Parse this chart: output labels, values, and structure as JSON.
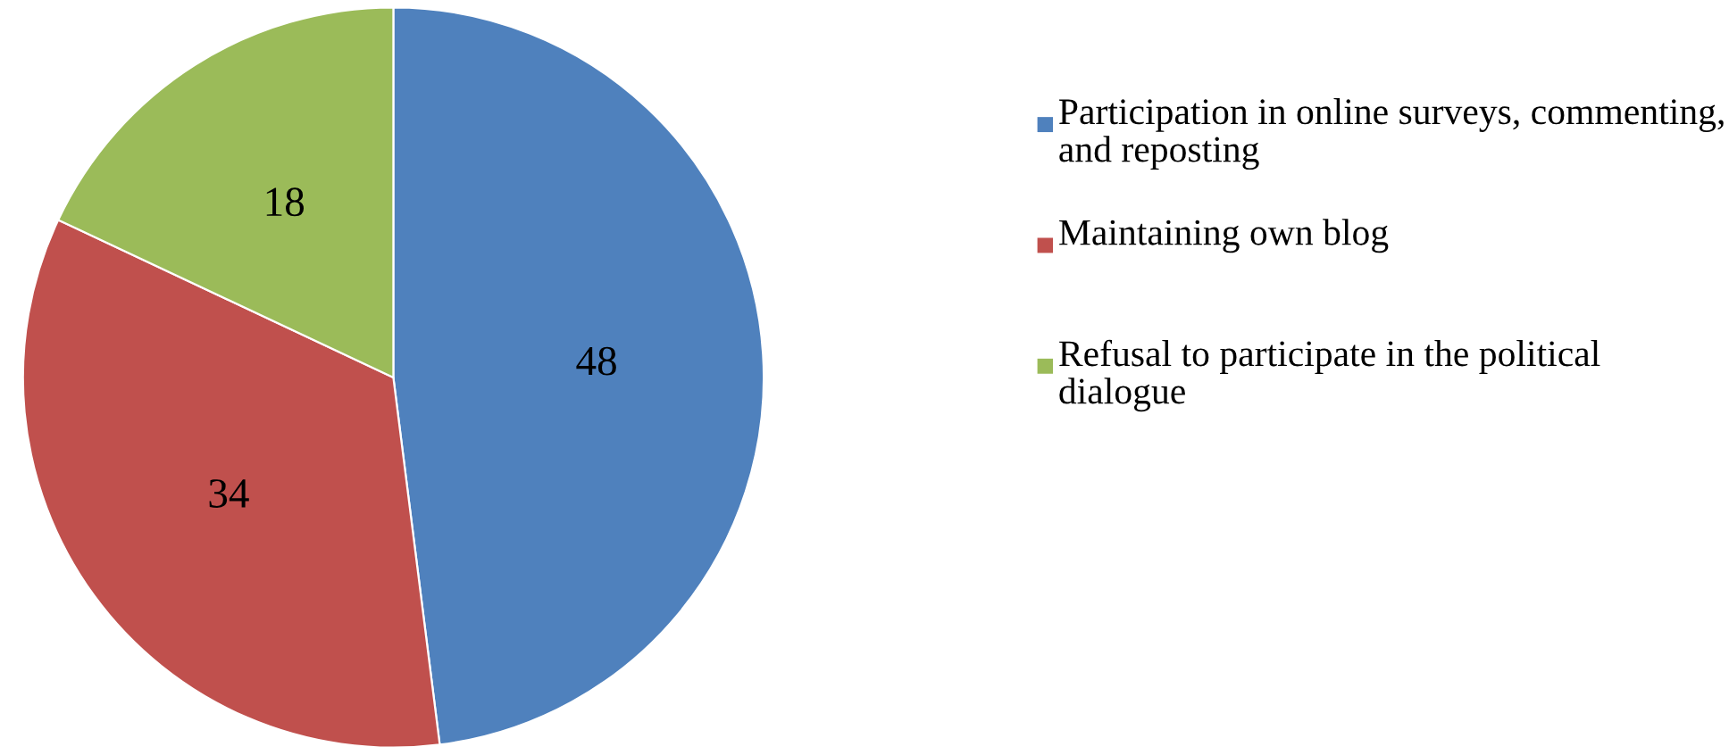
{
  "chart_data": {
    "type": "pie",
    "categories": [
      "Participation in online surveys, commenting, and reposting",
      "Maintaining own blog",
      "Refusal to participate in the political dialogue"
    ],
    "values": [
      48,
      34,
      18
    ],
    "colors": [
      "#4f81bd",
      "#c0504d",
      "#9bbb59"
    ],
    "data_labels": true,
    "legend": "right"
  }
}
